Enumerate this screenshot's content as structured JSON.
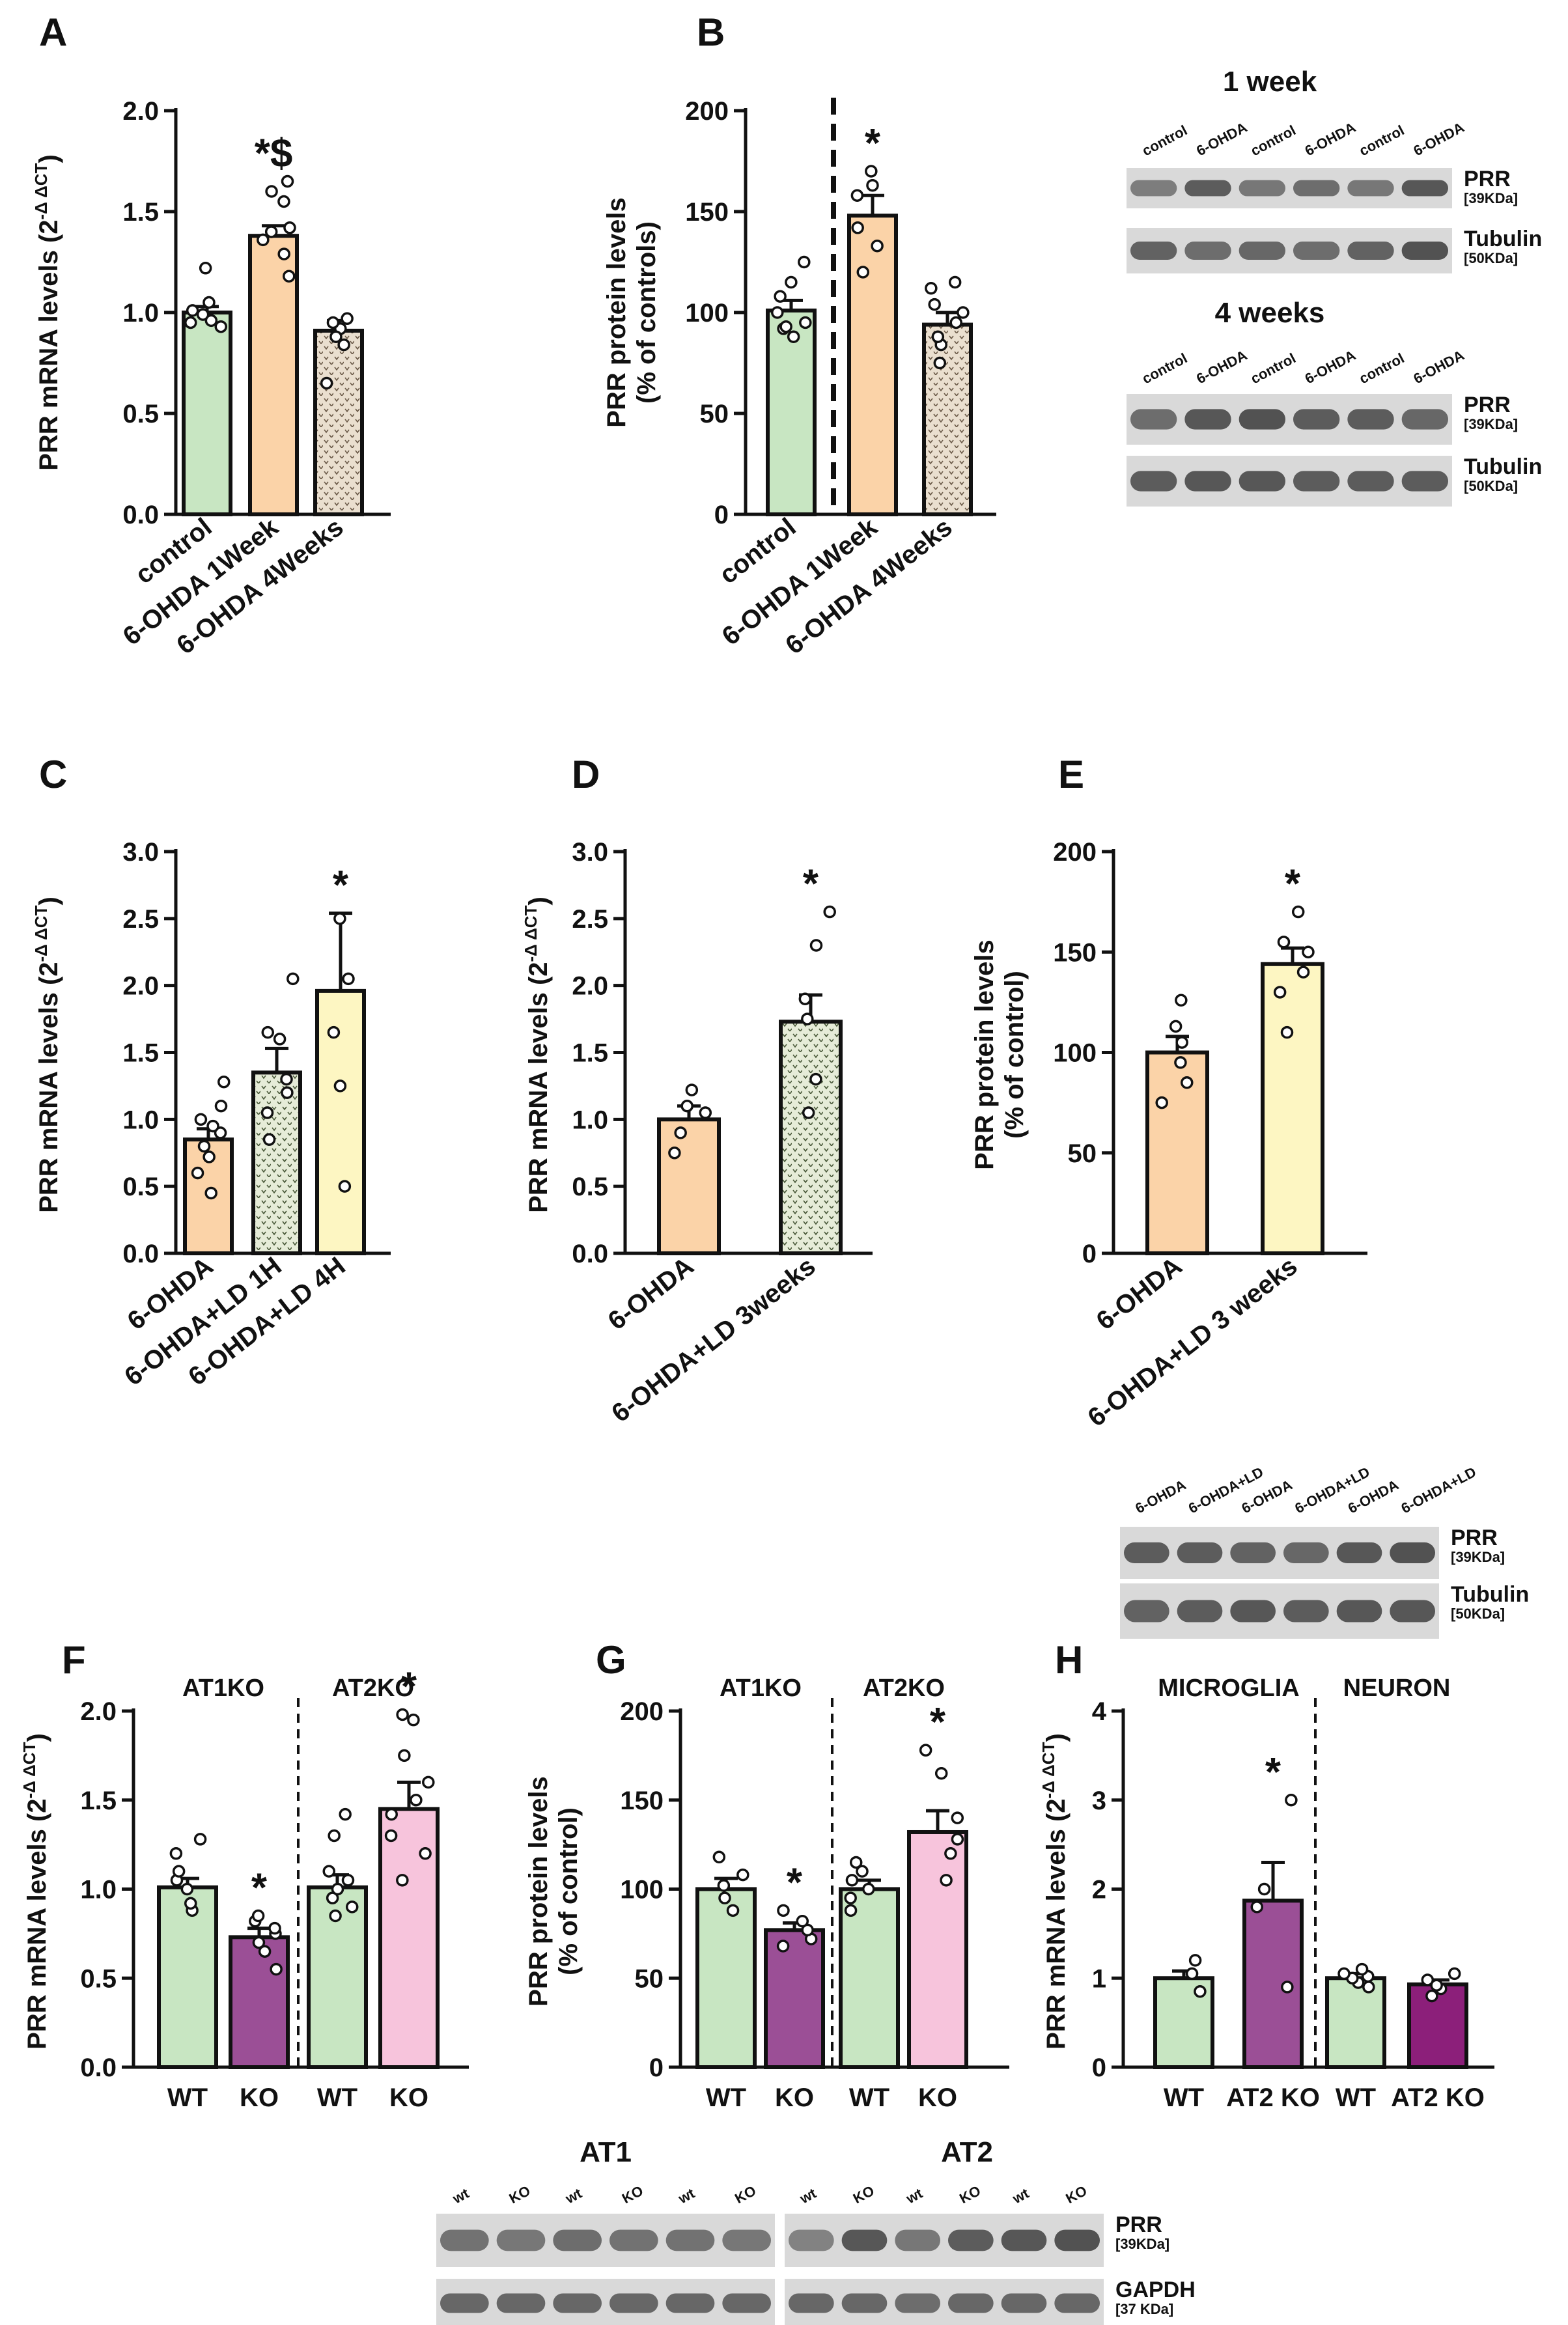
{
  "colors": {
    "control": "#c8e6c2",
    "orange": "#fbd3a8",
    "yellow": "#fdf6c2",
    "pattern": "#e3d6c2",
    "patternDot": "#7a6a55",
    "green_pattern": "#e0ead2",
    "purple": "#9b4f96",
    "purple_dark": "#8c1f7a",
    "pink": "#f7c4dc"
  },
  "chart_data": [
    {
      "panel": "A",
      "type": "bar",
      "ylabel": "PRR mRNA levels (2^-ΔΔCT)",
      "ylabel_main": "PRR mRNA levels (2",
      "ylabel_sup": "-Δ ΔCT",
      "ylabel_end": ")",
      "ylim": [
        0,
        2.0
      ],
      "ticks": [
        "0.0",
        "0.5",
        "1.0",
        "1.5",
        "2.0"
      ],
      "tickvals": [
        0,
        0.5,
        1.0,
        1.5,
        2.0
      ],
      "categories": [
        "control",
        "6-OHDA 1Week",
        "6-OHDA 4Weeks"
      ],
      "values": [
        1.0,
        1.38,
        0.91
      ],
      "errors": [
        0.03,
        0.05,
        0.05
      ],
      "points": [
        [
          0.95,
          0.93,
          1.01,
          1.05,
          0.99,
          1.22,
          0.96
        ],
        [
          1.18,
          1.29,
          1.36,
          1.42,
          1.55,
          1.6,
          1.65,
          1.4
        ],
        [
          0.97,
          0.92,
          0.84,
          0.88,
          0.65,
          0.95
        ]
      ],
      "fills": [
        "control",
        "orange",
        "pattern"
      ],
      "annotations": [
        "",
        "*$",
        ""
      ]
    },
    {
      "panel": "B",
      "type": "bar",
      "ylabel_line1": "PRR protein levels",
      "ylabel_line2": "(% of controls)",
      "ylim": [
        0,
        200
      ],
      "ticks": [
        "0",
        "50",
        "100",
        "150",
        "200"
      ],
      "tickvals": [
        0,
        50,
        100,
        150,
        200
      ],
      "categories": [
        "control",
        "6-OHDA 1Week",
        "6-OHDA 4Weeks"
      ],
      "values": [
        101,
        148,
        94
      ],
      "errors": [
        5,
        10,
        6
      ],
      "points": [
        [
          92,
          95,
          100,
          108,
          115,
          125,
          93,
          88
        ],
        [
          120,
          133,
          142,
          158,
          163,
          170
        ],
        [
          75,
          95,
          100,
          104,
          112,
          115,
          84,
          88
        ]
      ],
      "fills": [
        "control",
        "orange",
        "pattern"
      ],
      "annotations": [
        "",
        "*",
        ""
      ]
    },
    {
      "panel": "C",
      "type": "bar",
      "ylabel_main": "PRR mRNA levels (2",
      "ylabel_sup": "-Δ ΔCT",
      "ylabel_end": ")",
      "ylim": [
        0,
        3.0
      ],
      "ticks": [
        "0.0",
        "0.5",
        "1.0",
        "1.5",
        "2.0",
        "2.5",
        "3.0"
      ],
      "tickvals": [
        0,
        0.5,
        1,
        1.5,
        2,
        2.5,
        3
      ],
      "categories": [
        "6-OHDA",
        "6-OHDA+LD 1H",
        "6-OHDA+LD 4H"
      ],
      "values": [
        0.85,
        1.35,
        1.96
      ],
      "errors": [
        0.08,
        0.18,
        0.58
      ],
      "points": [
        [
          0.45,
          0.6,
          0.72,
          0.8,
          0.9,
          0.95,
          1.0,
          1.1,
          1.28
        ],
        [
          0.85,
          1.05,
          1.2,
          1.3,
          1.6,
          1.65,
          2.05
        ],
        [
          0.5,
          1.25,
          1.65,
          2.05,
          2.5
        ]
      ],
      "fills": [
        "orange",
        "green_pattern",
        "yellow"
      ],
      "annotations": [
        "",
        "",
        "*"
      ]
    },
    {
      "panel": "D",
      "type": "bar",
      "ylabel_main": "PRR mRNA levels (2",
      "ylabel_sup": "-Δ ΔCT",
      "ylabel_end": ")",
      "ylim": [
        0,
        3.0
      ],
      "ticks": [
        "0.0",
        "0.5",
        "1.0",
        "1.5",
        "2.0",
        "2.5",
        "3.0"
      ],
      "tickvals": [
        0,
        0.5,
        1,
        1.5,
        2,
        2.5,
        3
      ],
      "categories": [
        "6-OHDA",
        "6-OHDA+LD 3weeks"
      ],
      "values": [
        1.0,
        1.73
      ],
      "errors": [
        0.1,
        0.2
      ],
      "points": [
        [
          0.75,
          0.9,
          1.05,
          1.1,
          1.22
        ],
        [
          1.05,
          1.3,
          1.75,
          1.9,
          2.3,
          2.55
        ]
      ],
      "fills": [
        "orange",
        "green_pattern"
      ],
      "annotations": [
        "",
        "*"
      ]
    },
    {
      "panel": "E",
      "type": "bar",
      "ylabel_line1": "PRR protein levels",
      "ylabel_line2": "(% of control)",
      "ylim": [
        0,
        200
      ],
      "ticks": [
        "0",
        "50",
        "100",
        "150",
        "200"
      ],
      "tickvals": [
        0,
        50,
        100,
        150,
        200
      ],
      "categories": [
        "6-OHDA",
        "6-OHDA+LD 3 weeks"
      ],
      "values": [
        100,
        144
      ],
      "errors": [
        8,
        8
      ],
      "points": [
        [
          75,
          85,
          95,
          105,
          113,
          126
        ],
        [
          110,
          130,
          140,
          150,
          155,
          170
        ]
      ],
      "fills": [
        "orange",
        "yellow"
      ],
      "annotations": [
        "",
        "*"
      ]
    },
    {
      "panel": "F",
      "type": "bar",
      "ylabel_main": "PRR mRNA levels (2",
      "ylabel_sup": "-Δ ΔCT",
      "ylabel_end": ")",
      "ylim": [
        0,
        2.0
      ],
      "ticks": [
        "0.0",
        "0.5",
        "1.0",
        "1.5",
        "2.0"
      ],
      "tickvals": [
        0,
        0.5,
        1,
        1.5,
        2
      ],
      "groups": [
        "AT1KO",
        "AT2KO"
      ],
      "categories": [
        "WT",
        "KO",
        "WT",
        "KO"
      ],
      "values": [
        1.01,
        0.73,
        1.01,
        1.45
      ],
      "errors": [
        0.05,
        0.05,
        0.07,
        0.15
      ],
      "points": [
        [
          0.88,
          0.92,
          1.0,
          1.05,
          1.1,
          1.2,
          1.28
        ],
        [
          0.55,
          0.65,
          0.7,
          0.75,
          0.78,
          0.82,
          0.85
        ],
        [
          0.85,
          0.9,
          0.95,
          1.0,
          1.05,
          1.1,
          1.3,
          1.42
        ],
        [
          1.05,
          1.2,
          1.3,
          1.42,
          1.5,
          1.6,
          1.75,
          1.95,
          1.98
        ]
      ],
      "fills": [
        "control",
        "purple",
        "control",
        "pink"
      ],
      "annotations": [
        "",
        "*",
        "",
        "*"
      ]
    },
    {
      "panel": "G",
      "type": "bar",
      "ylabel_line1": "PRR protein levels",
      "ylabel_line2": "(% of control)",
      "ylim": [
        0,
        200
      ],
      "ticks": [
        "0",
        "50",
        "100",
        "150",
        "200"
      ],
      "tickvals": [
        0,
        50,
        100,
        150,
        200
      ],
      "groups": [
        "AT1KO",
        "AT2KO"
      ],
      "categories": [
        "WT",
        "KO",
        "WT",
        "KO"
      ],
      "values": [
        100,
        77,
        100,
        132
      ],
      "errors": [
        6,
        4,
        5,
        12
      ],
      "points": [
        [
          88,
          95,
          102,
          108,
          118
        ],
        [
          68,
          72,
          77,
          82,
          88
        ],
        [
          88,
          95,
          100,
          105,
          110,
          115
        ],
        [
          105,
          120,
          128,
          140,
          165,
          178
        ]
      ],
      "fills": [
        "control",
        "purple",
        "control",
        "pink"
      ],
      "annotations": [
        "",
        "*",
        "",
        "*"
      ]
    },
    {
      "panel": "H",
      "type": "bar",
      "ylabel_main": "PRR mRNA levels (2",
      "ylabel_sup": "-Δ ΔCT",
      "ylabel_end": ")",
      "ylim": [
        0,
        4
      ],
      "ticks": [
        "0",
        "1",
        "2",
        "3",
        "4"
      ],
      "tickvals": [
        0,
        1,
        2,
        3,
        4
      ],
      "groups": [
        "MICROGLIA",
        "NEURON"
      ],
      "categories": [
        "WT",
        "AT2 KO",
        "WT",
        "AT2 KO"
      ],
      "values": [
        1.0,
        1.87,
        1.0,
        0.93
      ],
      "errors": [
        0.08,
        0.43,
        0.05,
        0.05
      ],
      "points": [
        [
          0.85,
          1.05,
          1.2
        ],
        [
          0.9,
          1.8,
          2.0,
          3.0
        ],
        [
          0.9,
          0.95,
          1.0,
          1.02,
          1.05,
          1.1
        ],
        [
          0.8,
          0.88,
          0.92,
          0.98,
          1.05
        ]
      ],
      "fills": [
        "control",
        "purple",
        "control",
        "purple_dark"
      ],
      "annotations": [
        "",
        "*",
        "",
        ""
      ]
    }
  ],
  "blots": {
    "b1week": {
      "title": "1 week",
      "lanes": [
        "control",
        "6-OHDA",
        "control",
        "6-OHDA",
        "control",
        "6-OHDA"
      ],
      "prot1": "PRR",
      "kda1": "[39KDa]",
      "prot2": "Tubulin",
      "kda2": "[50KDa]"
    },
    "b4weeks": {
      "title": "4 weeks",
      "lanes": [
        "control",
        "6-OHDA",
        "control",
        "6-OHDA",
        "control",
        "6-OHDA"
      ],
      "prot1": "PRR",
      "kda1": "[39KDa]",
      "prot2": "Tubulin",
      "kda2": "[50KDa]"
    },
    "bE": {
      "lanes": [
        "6-OHDA",
        "6-OHDA+LD",
        "6-OHDA",
        "6-OHDA+LD",
        "6-OHDA",
        "6-OHDA+LD"
      ],
      "prot1": "PRR",
      "kda1": "[39KDa]",
      "prot2": "Tubulin",
      "kda2": "[50KDa]"
    },
    "bAT1": {
      "title": "AT1",
      "lanes": [
        "wt",
        "KO",
        "wt",
        "KO",
        "wt",
        "KO"
      ]
    },
    "bAT2": {
      "title": "AT2",
      "lanes": [
        "wt",
        "KO",
        "wt",
        "KO",
        "wt",
        "KO"
      ],
      "prot1": "PRR",
      "kda1": "[39KDa]",
      "prot2": "GAPDH",
      "kda2": "[37 KDa]"
    }
  }
}
